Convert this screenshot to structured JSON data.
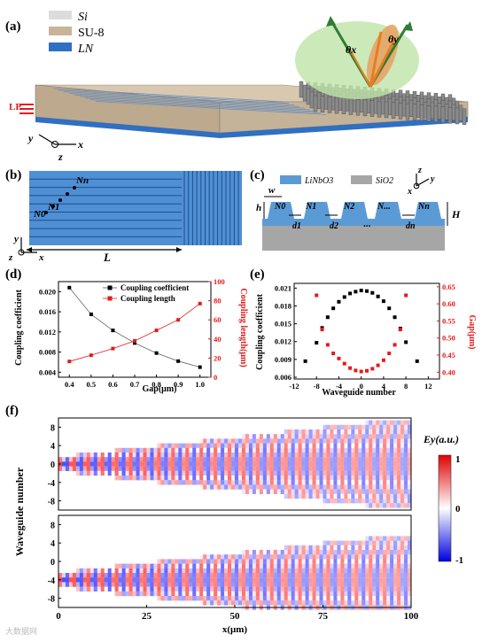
{
  "panel_a": {
    "label": "(a)",
    "legend": [
      {
        "text": "Si",
        "color": "#dcdcdc"
      },
      {
        "text": "SU-8",
        "color": "#c9b49a"
      },
      {
        "text": "LN",
        "color": "#2f6fc4"
      }
    ],
    "lp_label": "LP",
    "axes": {
      "y": "y",
      "x": "x",
      "z": "z"
    },
    "theta_x": "θx",
    "theta_y": "θy"
  },
  "panel_b": {
    "label": "(b)",
    "n_labels": [
      "N0",
      "N1",
      "Nn"
    ],
    "length_label": "L",
    "axes": {
      "y": "y",
      "z": "z",
      "x": "x"
    }
  },
  "panel_c": {
    "label": "(c)",
    "legend": [
      {
        "text": "LiNbO3",
        "color": "#5b9bd5"
      },
      {
        "text": "SiO2",
        "color": "#a6a6a6"
      }
    ],
    "axes": {
      "z": "z",
      "x": "x",
      "y": "y"
    },
    "w": "w",
    "h": "h",
    "H": "H",
    "n_labels": [
      "N0",
      "N1",
      "N2",
      "N...",
      "Nn"
    ],
    "d_labels": [
      "d1",
      "d2",
      "dn"
    ],
    "dots": "..."
  },
  "chart_data": [
    {
      "panel": "(d)",
      "type": "line",
      "xlabel": "Gap(μm)",
      "ylabel": "Coupling coefficient",
      "y2label": "Coupling length(μm)",
      "x": [
        0.4,
        0.5,
        0.6,
        0.7,
        0.8,
        0.9,
        1.0
      ],
      "xticks": [
        "0.4",
        "0.5",
        "0.6",
        "0.7",
        "0.8",
        "0.9",
        "1.0"
      ],
      "xlim": [
        0.35,
        1.05
      ],
      "ylim": [
        0.003,
        0.022
      ],
      "yticks": [
        "0.004",
        "0.008",
        "0.012",
        "0.016",
        "0.020"
      ],
      "y2lim": [
        0,
        100
      ],
      "y2ticks": [
        "0",
        "20",
        "40",
        "60",
        "80",
        "100"
      ],
      "series": [
        {
          "name": "Coupling coefficient",
          "axis": "left",
          "color": "#000000",
          "marker": "square",
          "values": [
            0.0208,
            0.0155,
            0.0123,
            0.0098,
            0.0078,
            0.0062,
            0.005
          ]
        },
        {
          "name": "Coupling length",
          "axis": "right",
          "color": "#e41a1c",
          "marker": "square",
          "values": [
            16.5,
            23,
            30,
            38,
            49,
            60,
            77
          ]
        }
      ]
    },
    {
      "panel": "(e)",
      "type": "scatter",
      "xlabel": "Waveguide number",
      "ylabel": "Coupling coefficient",
      "y2label": "Gap(μm)",
      "xlim": [
        -12,
        14
      ],
      "xticks": [
        "-12",
        "-8",
        "-4",
        "0",
        "4",
        "8",
        "12"
      ],
      "ylim": [
        0.0057,
        0.0218
      ],
      "yticks": [
        "0.006",
        "0.009",
        "0.012",
        "0.015",
        "0.018",
        "0.021"
      ],
      "y2lim": [
        0.38,
        0.66
      ],
      "y2ticks": [
        "0.40",
        "0.45",
        "0.50",
        "0.55",
        "0.60",
        "0.65"
      ],
      "series": [
        {
          "name": "Coupling coefficient",
          "axis": "left",
          "color": "#000000",
          "marker": "square",
          "x": [
            -10,
            -8,
            -7,
            -6,
            -5,
            -4,
            -3,
            -2,
            -1,
            0,
            1,
            2,
            3,
            4,
            5,
            6,
            7,
            8,
            10
          ],
          "values": [
            0.0087,
            0.0118,
            0.0143,
            0.0161,
            0.0176,
            0.0187,
            0.0195,
            0.0201,
            0.0204,
            0.0206,
            0.0205,
            0.0202,
            0.0196,
            0.0188,
            0.0176,
            0.0161,
            0.0142,
            0.0119,
            0.0087
          ]
        },
        {
          "name": "Gap",
          "axis": "right",
          "color": "#e41a1c",
          "marker": "square",
          "x": [
            -8,
            -7,
            -6,
            -5,
            -4,
            -3,
            -2,
            -1,
            0,
            1,
            2,
            3,
            4,
            5,
            6,
            7,
            8
          ],
          "values": [
            0.625,
            0.525,
            0.48,
            0.455,
            0.44,
            0.425,
            0.412,
            0.405,
            0.402,
            0.404,
            0.41,
            0.42,
            0.435,
            0.455,
            0.48,
            0.525,
            0.625
          ]
        }
      ]
    },
    {
      "panel": "(f)",
      "type": "heatmap",
      "xlabel": "x(μm)",
      "ylabel": "Waveguide number",
      "xlim": [
        0,
        100
      ],
      "xticks": [
        "0",
        "25",
        "50",
        "75",
        "100"
      ],
      "ylim": [
        -10,
        10
      ],
      "yticks": [
        "8",
        "4",
        "0",
        "-4",
        "-8"
      ],
      "colorbar": {
        "label": "Ey(a.u.)",
        "ticks": [
          "1",
          "0",
          "-1"
        ],
        "colors": [
          "#0000ff",
          "#ffffff",
          "#ff0000"
        ]
      },
      "maps": [
        {
          "input_waveguide": 0
        },
        {
          "input_waveguide": -4
        }
      ]
    }
  ],
  "watermark": "大数据网"
}
